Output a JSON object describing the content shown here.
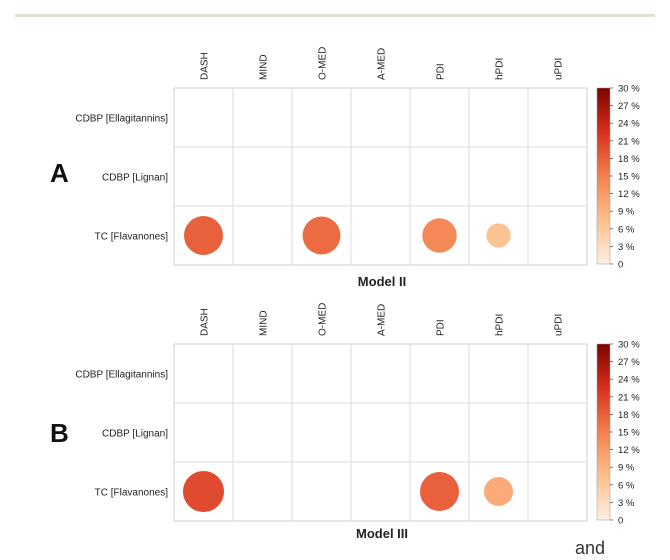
{
  "panels": [
    {
      "letter": "A",
      "model": "Model II",
      "columns": [
        "DASH",
        "MIND",
        "O-MED",
        "A-MED",
        "PDI",
        "hPDI",
        "uPDI"
      ],
      "rows": [
        "CDBP [Ellagitannins]",
        "CDBP [Lignan]",
        "TC [Flavanones]"
      ]
    },
    {
      "letter": "B",
      "model": "Model III",
      "columns": [
        "DASH",
        "MIND",
        "O-MED",
        "A-MED",
        "PDI",
        "hPDI",
        "uPDI"
      ],
      "rows": [
        "CDBP [Ellagitannins]",
        "CDBP [Lignan]",
        "TC [Flavanones]"
      ]
    }
  ],
  "legend": {
    "ticks": [
      "30 %",
      "27 %",
      "24 %",
      "21 %",
      "18 %",
      "15 %",
      "12 %",
      "9 %",
      "6 %",
      "3 %",
      "0"
    ],
    "color_low": "#fbefe2",
    "color_high": "#7f0000"
  },
  "chart_data": [
    {
      "type": "heatmap",
      "title": "Model II",
      "x": [
        "DASH",
        "MIND",
        "O-MED",
        "A-MED",
        "PDI",
        "hPDI",
        "uPDI"
      ],
      "y": [
        "CDBP [Ellagitannins]",
        "CDBP [Lignan]",
        "TC [Flavanones]"
      ],
      "vmin": 0,
      "vmax": 30,
      "points": [
        {
          "x": "DASH",
          "y": "TC [Flavanones]",
          "value": 18
        },
        {
          "x": "O-MED",
          "y": "TC [Flavanones]",
          "value": 17
        },
        {
          "x": "PDI",
          "y": "TC [Flavanones]",
          "value": 14
        },
        {
          "x": "hPDI",
          "y": "TC [Flavanones]",
          "value": 7
        }
      ]
    },
    {
      "type": "heatmap",
      "title": "Model III",
      "x": [
        "DASH",
        "MIND",
        "O-MED",
        "A-MED",
        "PDI",
        "hPDI",
        "uPDI"
      ],
      "y": [
        "CDBP [Ellagitannins]",
        "CDBP [Lignan]",
        "TC [Flavanones]"
      ],
      "vmin": 0,
      "vmax": 30,
      "points": [
        {
          "x": "DASH",
          "y": "TC [Flavanones]",
          "value": 20
        },
        {
          "x": "PDI",
          "y": "TC [Flavanones]",
          "value": 18
        },
        {
          "x": "hPDI",
          "y": "TC [Flavanones]",
          "value": 10
        }
      ]
    }
  ],
  "trailing_text": "and"
}
